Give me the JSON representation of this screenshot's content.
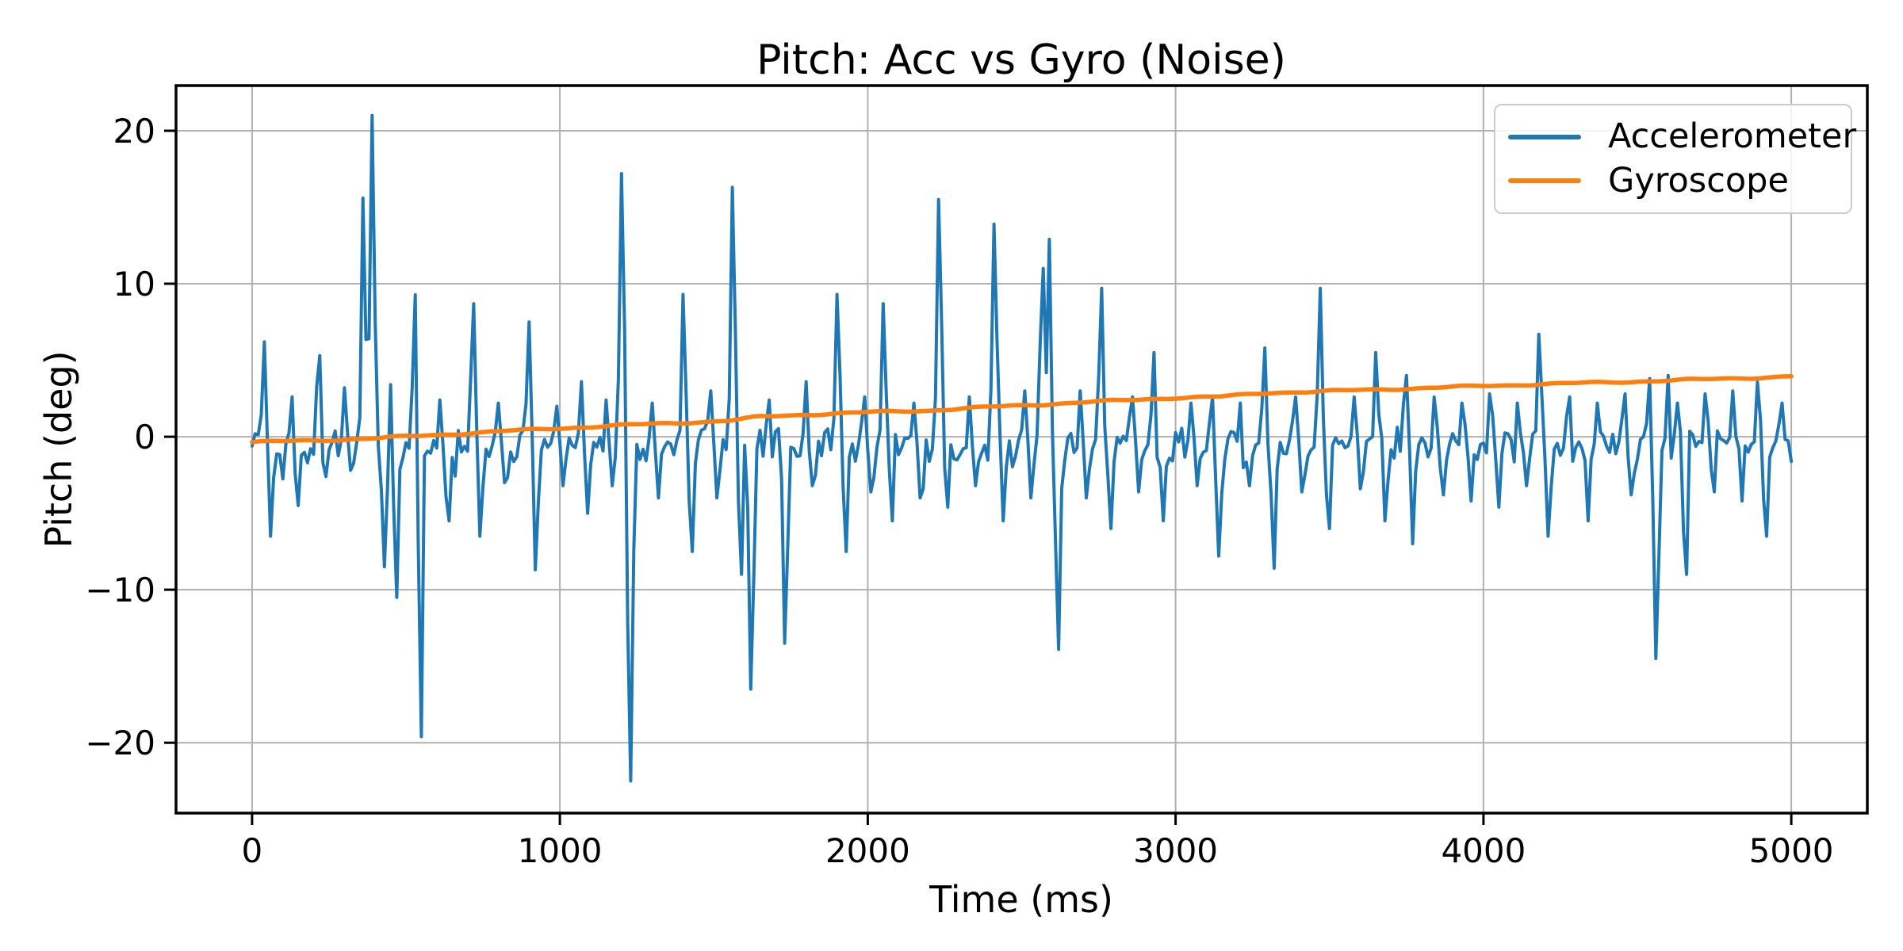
{
  "chart": {
    "title": "Pitch: Acc vs Gyro (Noise)",
    "xlabel": "Time (ms)",
    "ylabel": "Pitch (deg)"
  },
  "chart_data": {
    "type": "line",
    "title": "Pitch: Acc vs Gyro (Noise)",
    "xlabel": "Time (ms)",
    "ylabel": "Pitch (deg)",
    "xlim": [
      -247,
      5247
    ],
    "ylim": [
      -24.6,
      22.95
    ],
    "x_ticks": [
      0,
      1000,
      2000,
      3000,
      4000,
      5000
    ],
    "y_ticks": [
      -20,
      -10,
      0,
      10,
      20
    ],
    "grid": true,
    "legend_position": "upper right",
    "colors": {
      "accelerometer": "#1f77b4",
      "gyroscope": "#ff7f0e",
      "grid": "#b0b0b0",
      "spine": "#000000",
      "legend_edge": "#cccccc",
      "text": "#000000"
    },
    "series": [
      {
        "name": "Accelerometer",
        "color": "#1f77b4",
        "kind": "noisy",
        "t_start": 0,
        "t_end": 5000,
        "dt_ms": 10,
        "noise": {
          "mean": -0.55,
          "amplitude": 1.35,
          "outlier_chance": 0.07,
          "outlier_gain": 1.8,
          "seed": 20240917
        },
        "spikes": [
          [
            40,
            6.2,
            14
          ],
          [
            62,
            -6.5,
            13
          ],
          [
            125,
            2.6,
            12
          ],
          [
            150,
            -4.5,
            13
          ],
          [
            215,
            5.3,
            14
          ],
          [
            240,
            -2.6,
            12
          ],
          [
            300,
            3.2,
            12
          ],
          [
            322,
            -2.2,
            12
          ],
          [
            362,
            15.6,
            14
          ],
          [
            390,
            21.0,
            16
          ],
          [
            430,
            -8.5,
            14
          ],
          [
            452,
            3.4,
            12
          ],
          [
            468,
            -10.5,
            14
          ],
          [
            528,
            10.5,
            13
          ],
          [
            546,
            11.2,
            13
          ],
          [
            545,
            -19.6,
            16
          ],
          [
            608,
            2.4,
            12
          ],
          [
            638,
            -5.5,
            14
          ],
          [
            718,
            8.7,
            14
          ],
          [
            742,
            -6.5,
            14
          ],
          [
            800,
            2.2,
            12
          ],
          [
            824,
            -3.0,
            12
          ],
          [
            898,
            7.5,
            14
          ],
          [
            922,
            -8.7,
            14
          ],
          [
            988,
            2.0,
            12
          ],
          [
            1010,
            -3.2,
            12
          ],
          [
            1068,
            3.6,
            12
          ],
          [
            1092,
            -5.0,
            13
          ],
          [
            1148,
            2.4,
            12
          ],
          [
            1172,
            -3.2,
            12
          ],
          [
            1202,
            17.2,
            15
          ],
          [
            1228,
            -22.5,
            17
          ],
          [
            1298,
            2.2,
            12
          ],
          [
            1322,
            -4.0,
            12
          ],
          [
            1402,
            9.3,
            14
          ],
          [
            1428,
            -7.5,
            14
          ],
          [
            1488,
            3.0,
            12
          ],
          [
            1512,
            -4.0,
            12
          ],
          [
            1562,
            16.3,
            15
          ],
          [
            1588,
            -9.0,
            13
          ],
          [
            1622,
            -16.5,
            15
          ],
          [
            1678,
            2.4,
            12
          ],
          [
            1732,
            -13.5,
            15
          ],
          [
            1798,
            3.6,
            12
          ],
          [
            1822,
            -3.2,
            12
          ],
          [
            1902,
            9.3,
            14
          ],
          [
            1928,
            -7.5,
            14
          ],
          [
            1988,
            2.6,
            12
          ],
          [
            2012,
            -3.6,
            12
          ],
          [
            2052,
            8.7,
            14
          ],
          [
            2078,
            -5.5,
            13
          ],
          [
            2148,
            2.2,
            12
          ],
          [
            2172,
            -4.0,
            12
          ],
          [
            2232,
            15.5,
            15
          ],
          [
            2258,
            -4.6,
            12
          ],
          [
            2328,
            2.6,
            12
          ],
          [
            2352,
            -3.2,
            12
          ],
          [
            2412,
            13.9,
            15
          ],
          [
            2442,
            -5.5,
            13
          ],
          [
            2508,
            3.0,
            12
          ],
          [
            2532,
            -4.0,
            12
          ],
          [
            2565,
            11.0,
            13
          ],
          [
            2588,
            12.9,
            13
          ],
          [
            2618,
            -13.9,
            15
          ],
          [
            2688,
            3.0,
            12
          ],
          [
            2712,
            -4.0,
            12
          ],
          [
            2758,
            9.7,
            14
          ],
          [
            2788,
            -6.0,
            13
          ],
          [
            2858,
            2.6,
            12
          ],
          [
            2882,
            -3.6,
            12
          ],
          [
            2928,
            5.5,
            13
          ],
          [
            2958,
            -5.5,
            13
          ],
          [
            3048,
            2.2,
            12
          ],
          [
            3072,
            -3.2,
            12
          ],
          [
            3118,
            2.6,
            12
          ],
          [
            3142,
            -7.8,
            14
          ],
          [
            3212,
            2.2,
            12
          ],
          [
            3238,
            -3.2,
            12
          ],
          [
            3288,
            5.8,
            13
          ],
          [
            3318,
            -8.6,
            14
          ],
          [
            3388,
            2.6,
            12
          ],
          [
            3412,
            -3.6,
            12
          ],
          [
            3468,
            9.7,
            14
          ],
          [
            3498,
            -6.0,
            13
          ],
          [
            3578,
            2.6,
            12
          ],
          [
            3602,
            -3.4,
            12
          ],
          [
            3652,
            5.5,
            13
          ],
          [
            3682,
            -5.5,
            13
          ],
          [
            3745,
            4.0,
            12
          ],
          [
            3772,
            -7.0,
            13
          ],
          [
            3842,
            2.6,
            12
          ],
          [
            3868,
            -3.8,
            12
          ],
          [
            3932,
            2.2,
            12
          ],
          [
            3958,
            -4.2,
            12
          ],
          [
            4022,
            2.8,
            12
          ],
          [
            4048,
            -4.6,
            12
          ],
          [
            4112,
            2.2,
            12
          ],
          [
            4138,
            -3.2,
            12
          ],
          [
            4182,
            6.7,
            13
          ],
          [
            4212,
            -6.5,
            13
          ],
          [
            4278,
            2.6,
            12
          ],
          [
            4342,
            -5.5,
            13
          ],
          [
            4368,
            2.2,
            12
          ],
          [
            4458,
            2.8,
            12
          ],
          [
            4482,
            -3.8,
            12
          ],
          [
            4538,
            3.8,
            12
          ],
          [
            4562,
            -14.5,
            15
          ],
          [
            4598,
            4.0,
            12
          ],
          [
            4628,
            2.2,
            12
          ],
          [
            4655,
            -9.0,
            14
          ],
          [
            4722,
            2.8,
            12
          ],
          [
            4748,
            -3.6,
            12
          ],
          [
            4812,
            3.0,
            12
          ],
          [
            4838,
            -4.2,
            12
          ],
          [
            4892,
            3.6,
            12
          ],
          [
            4918,
            -6.5,
            13
          ],
          [
            4968,
            2.2,
            12
          ]
        ]
      },
      {
        "name": "Gyroscope",
        "color": "#ff7f0e",
        "kind": "smooth",
        "wiggle": 0.045,
        "points": [
          [
            0,
            -0.35
          ],
          [
            200,
            -0.25
          ],
          [
            400,
            -0.1
          ],
          [
            600,
            0.12
          ],
          [
            800,
            0.35
          ],
          [
            1000,
            0.55
          ],
          [
            1200,
            0.75
          ],
          [
            1400,
            0.92
          ],
          [
            1550,
            1.05
          ],
          [
            1650,
            1.3
          ],
          [
            1800,
            1.45
          ],
          [
            2000,
            1.6
          ],
          [
            2200,
            1.72
          ],
          [
            2400,
            1.95
          ],
          [
            2600,
            2.15
          ],
          [
            2800,
            2.35
          ],
          [
            3000,
            2.55
          ],
          [
            3150,
            2.62
          ],
          [
            3300,
            2.88
          ],
          [
            3450,
            2.95
          ],
          [
            3600,
            3.05
          ],
          [
            3800,
            3.18
          ],
          [
            4000,
            3.32
          ],
          [
            4200,
            3.45
          ],
          [
            4400,
            3.55
          ],
          [
            4600,
            3.68
          ],
          [
            4800,
            3.8
          ],
          [
            5000,
            3.95
          ]
        ]
      }
    ]
  },
  "legend": {
    "entries": [
      {
        "label": "Accelerometer"
      },
      {
        "label": "Gyroscope"
      }
    ]
  }
}
